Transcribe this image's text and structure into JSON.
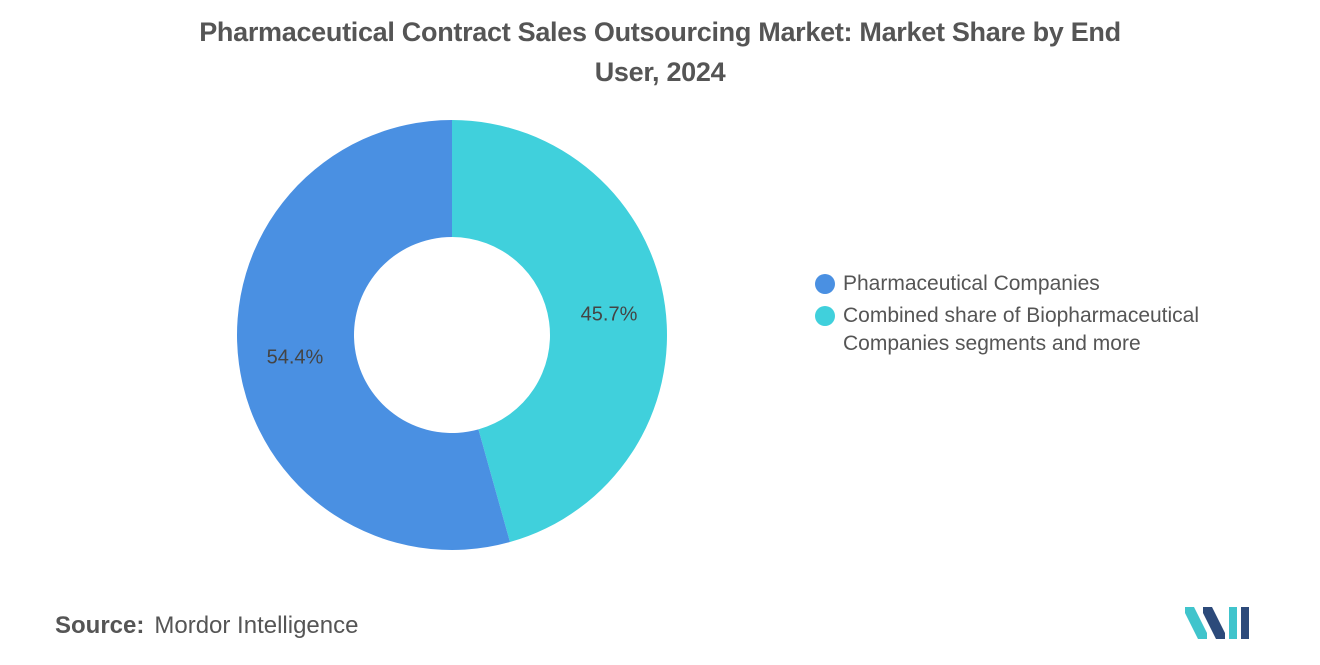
{
  "title_lines": [
    "Pharmaceutical Contract Sales Outsourcing Market: Market Share by End",
    "User, 2024"
  ],
  "chart_data": {
    "type": "pie",
    "variant": "donut",
    "title": "Pharmaceutical Contract Sales Outsourcing Market: Market Share by End User, 2024",
    "legend_position": "right",
    "slices": [
      {
        "label": "Combined share of Biopharmaceutical Companies segments and more",
        "value": 45.7,
        "display": "45.7%",
        "color": "#40d0dc"
      },
      {
        "label": "Pharmaceutical Companies",
        "value": 54.4,
        "display": "54.4%",
        "color": "#4a90e2"
      }
    ]
  },
  "legend": {
    "items": [
      {
        "label": "Pharmaceutical Companies",
        "color": "#4a90e2"
      },
      {
        "label": "Combined share of Biopharmaceutical Companies segments and more",
        "color": "#40d0dc"
      }
    ]
  },
  "source": {
    "label": "Source:",
    "value": "Mordor Intelligence"
  },
  "logo": {
    "icon": "mordor-intelligence-logo-icon",
    "colors": [
      "#2c4a7a",
      "#40c4cc"
    ]
  }
}
